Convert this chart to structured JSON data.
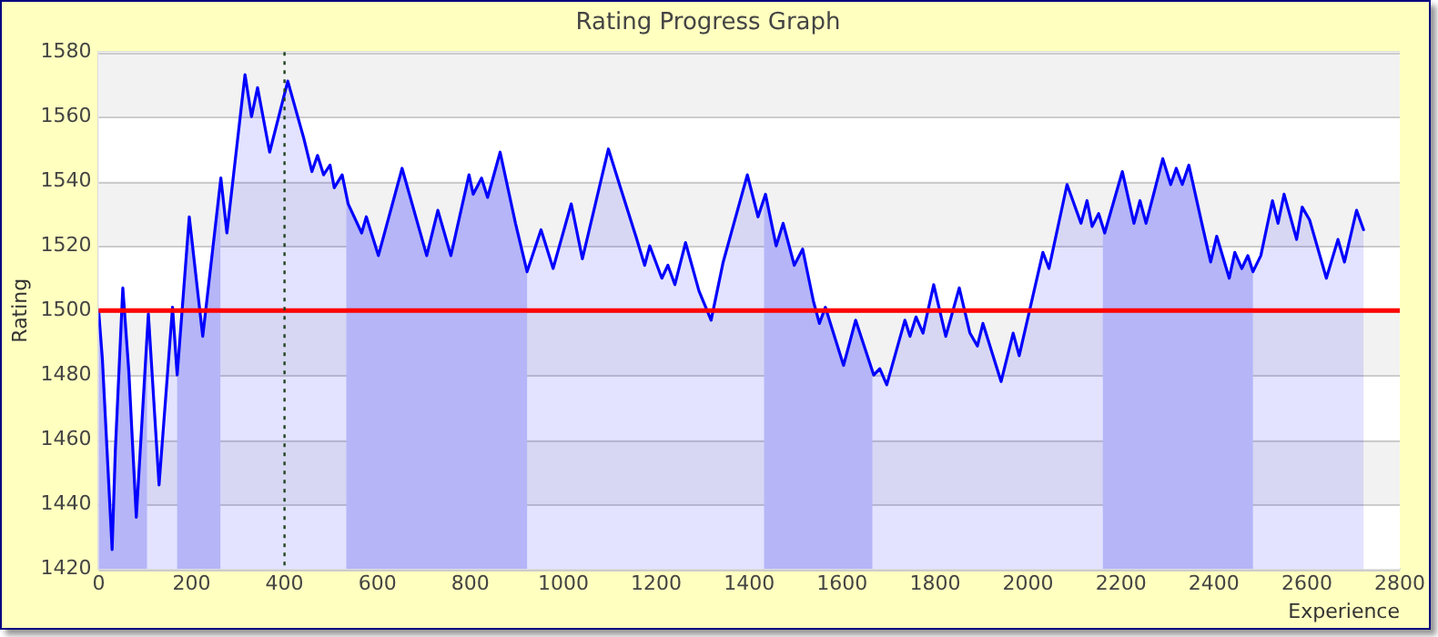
{
  "chart_data": {
    "type": "area",
    "title": "Rating Progress Graph",
    "xlabel": "Experience",
    "ylabel": "Rating",
    "xlim": [
      0,
      2800
    ],
    "xticks": [
      0,
      200,
      400,
      600,
      800,
      1000,
      1200,
      1400,
      1600,
      1800,
      2000,
      2200,
      2400,
      2600,
      2800
    ],
    "ylim": [
      1420,
      1580
    ],
    "yticks": [
      1420,
      1440,
      1460,
      1480,
      1500,
      1520,
      1540,
      1560,
      1580
    ],
    "grid": "y",
    "legend": false,
    "marker": "none",
    "line_style": "solid",
    "x": [
      0,
      8,
      29,
      36,
      52,
      65,
      81,
      107,
      130,
      159,
      169,
      195,
      224,
      263,
      276,
      315,
      329,
      342,
      368,
      407,
      442,
      459,
      471,
      484,
      498,
      507,
      524,
      537,
      566,
      576,
      602,
      653,
      706,
      730,
      758,
      797,
      806,
      824,
      837,
      864,
      897,
      922,
      952,
      978,
      1017,
      1041,
      1097,
      1123,
      1156,
      1175,
      1186,
      1212,
      1225,
      1240,
      1263,
      1292,
      1318,
      1344,
      1396,
      1419,
      1435,
      1458,
      1473,
      1497,
      1515,
      1538,
      1551,
      1564,
      1603,
      1629,
      1668,
      1681,
      1696,
      1735,
      1746,
      1759,
      1774,
      1797,
      1823,
      1852,
      1875,
      1891,
      1903,
      1942,
      1968,
      1981,
      2032,
      2045,
      2084,
      2114,
      2127,
      2138,
      2152,
      2165,
      2203,
      2228,
      2241,
      2254,
      2290,
      2307,
      2319,
      2332,
      2346,
      2374,
      2393,
      2406,
      2433,
      2445,
      2460,
      2473,
      2484,
      2501,
      2526,
      2538,
      2551,
      2578,
      2590,
      2606,
      2642,
      2667,
      2681,
      2707,
      2722
    ],
    "series": [
      {
        "color": "#0000ff",
        "values": [
          1500,
          1485,
          1426,
          1457,
          1507,
          1481,
          1436,
          1499,
          1446,
          1501,
          1480,
          1529,
          1492,
          1541,
          1524,
          1573,
          1560,
          1569,
          1549,
          1571,
          1553,
          1543,
          1548,
          1542,
          1545,
          1538,
          1542,
          1533,
          1524,
          1529,
          1517,
          1544,
          1517,
          1531,
          1517,
          1542,
          1536,
          1541,
          1535,
          1549,
          1527,
          1512,
          1525,
          1513,
          1533,
          1516,
          1550,
          1538,
          1523,
          1514,
          1520,
          1510,
          1514,
          1508,
          1521,
          1506,
          1497,
          1515,
          1542,
          1529,
          1536,
          1520,
          1527,
          1514,
          1519,
          1503,
          1496,
          1501,
          1483,
          1497,
          1480,
          1482,
          1477,
          1497,
          1492,
          1498,
          1493,
          1508,
          1492,
          1507,
          1493,
          1489,
          1496,
          1478,
          1493,
          1486,
          1518,
          1513,
          1539,
          1527,
          1534,
          1526,
          1530,
          1524,
          1543,
          1527,
          1534,
          1527,
          1547,
          1539,
          1544,
          1539,
          1545,
          1527,
          1515,
          1523,
          1510,
          1518,
          1513,
          1517,
          1512,
          1517,
          1534,
          1527,
          1536,
          1522,
          1532,
          1528,
          1510,
          1522,
          1515,
          1531,
          1525
        ]
      }
    ],
    "ref_lines": [
      {
        "axis": "y",
        "value": 1500,
        "color": "#ff0000",
        "line_style": "solid"
      },
      {
        "axis": "x",
        "value": 400,
        "color": "#224422",
        "line_style": "dotted"
      }
    ],
    "bands": [
      {
        "axis": "x",
        "from": 0,
        "to": 104,
        "color": "#ccccf8"
      },
      {
        "axis": "x",
        "from": 169,
        "to": 262,
        "color": "#ccccf8"
      },
      {
        "axis": "x",
        "from": 533,
        "to": 922,
        "color": "#ccccf8"
      },
      {
        "axis": "x",
        "from": 1432,
        "to": 1665,
        "color": "#ccccf8"
      },
      {
        "axis": "x",
        "from": 2161,
        "to": 2484,
        "color": "#ccccf8"
      }
    ]
  }
}
